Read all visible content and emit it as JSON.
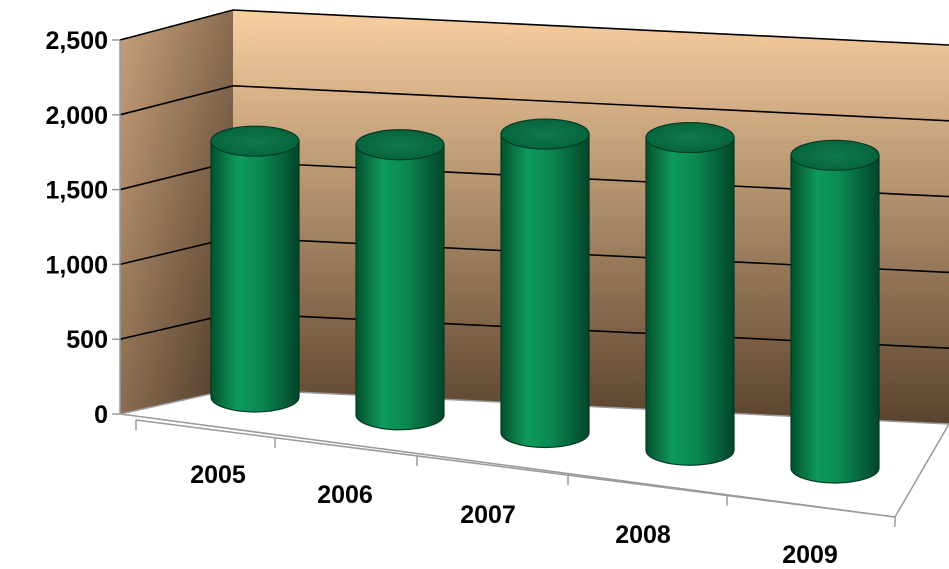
{
  "chart_data": {
    "type": "bar",
    "style": "3d-cylinder",
    "categories": [
      "2005",
      "2006",
      "2007",
      "2008",
      "2009"
    ],
    "values": [
      1800,
      1900,
      2100,
      2200,
      2200
    ],
    "ylim": [
      0,
      2500
    ],
    "yticks": [
      0,
      500,
      1000,
      1500,
      2000,
      2500
    ],
    "ytick_labels": [
      "0",
      "500",
      "1,000",
      "1,500",
      "2,000",
      "2,500"
    ],
    "grid": true,
    "legend": "none",
    "colors": {
      "bar": "#0b8a52",
      "bar_dark": "#04502c",
      "bar_light": "#2fb276",
      "wall_top": "#f8cfa0",
      "wall_bottom": "#5a432e",
      "side_wall_top": "#c9a27c",
      "side_wall_bottom": "#4a3726",
      "grid": "#000000"
    }
  }
}
